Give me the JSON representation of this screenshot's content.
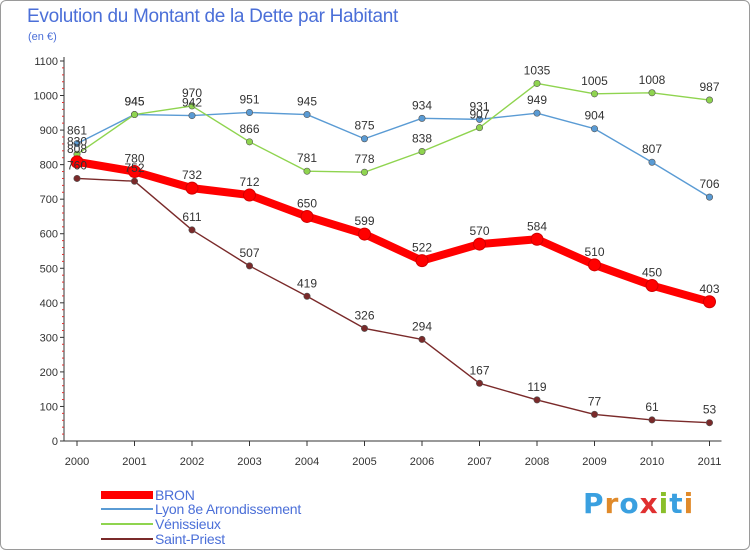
{
  "title": "Evolution du Montant de la Dette par Habitant",
  "subtitle": "(en €)",
  "logo_text": "Proxiti",
  "logo_colors": [
    "#3aa0e0",
    "#e08a2a",
    "#3aa0e0",
    "#e03030",
    "#8abf2a",
    "#3aa0e0",
    "#e08a2a"
  ],
  "chart_data": {
    "type": "line",
    "x": [
      "2000",
      "2001",
      "2002",
      "2003",
      "2004",
      "2005",
      "2006",
      "2007",
      "2008",
      "2009",
      "2010",
      "2011"
    ],
    "ylim": [
      0,
      1100
    ],
    "yticks": [
      "0",
      "100",
      "200",
      "300",
      "400",
      "500",
      "600",
      "700",
      "800",
      "900",
      "1000",
      "1100"
    ],
    "grid": false,
    "legend_position": "bottom-left",
    "series": [
      {
        "name": "BRON",
        "color": "#ff0000",
        "values": [
          808,
          780,
          732,
          712,
          650,
          599,
          522,
          570,
          584,
          510,
          450,
          403
        ]
      },
      {
        "name": "Lyon 8e  Arrondissement",
        "color": "#5a9bd4",
        "values": [
          861,
          945,
          942,
          951,
          945,
          875,
          934,
          931,
          949,
          904,
          807,
          706
        ]
      },
      {
        "name": "Vénissieux",
        "color": "#8fd44f",
        "values": [
          830,
          945,
          970,
          866,
          781,
          778,
          838,
          907,
          1035,
          1005,
          1008,
          987
        ]
      },
      {
        "name": "Saint-Priest",
        "color": "#7a2a2a",
        "values": [
          760,
          752,
          611,
          507,
          419,
          326,
          294,
          167,
          119,
          77,
          61,
          53
        ]
      }
    ]
  }
}
